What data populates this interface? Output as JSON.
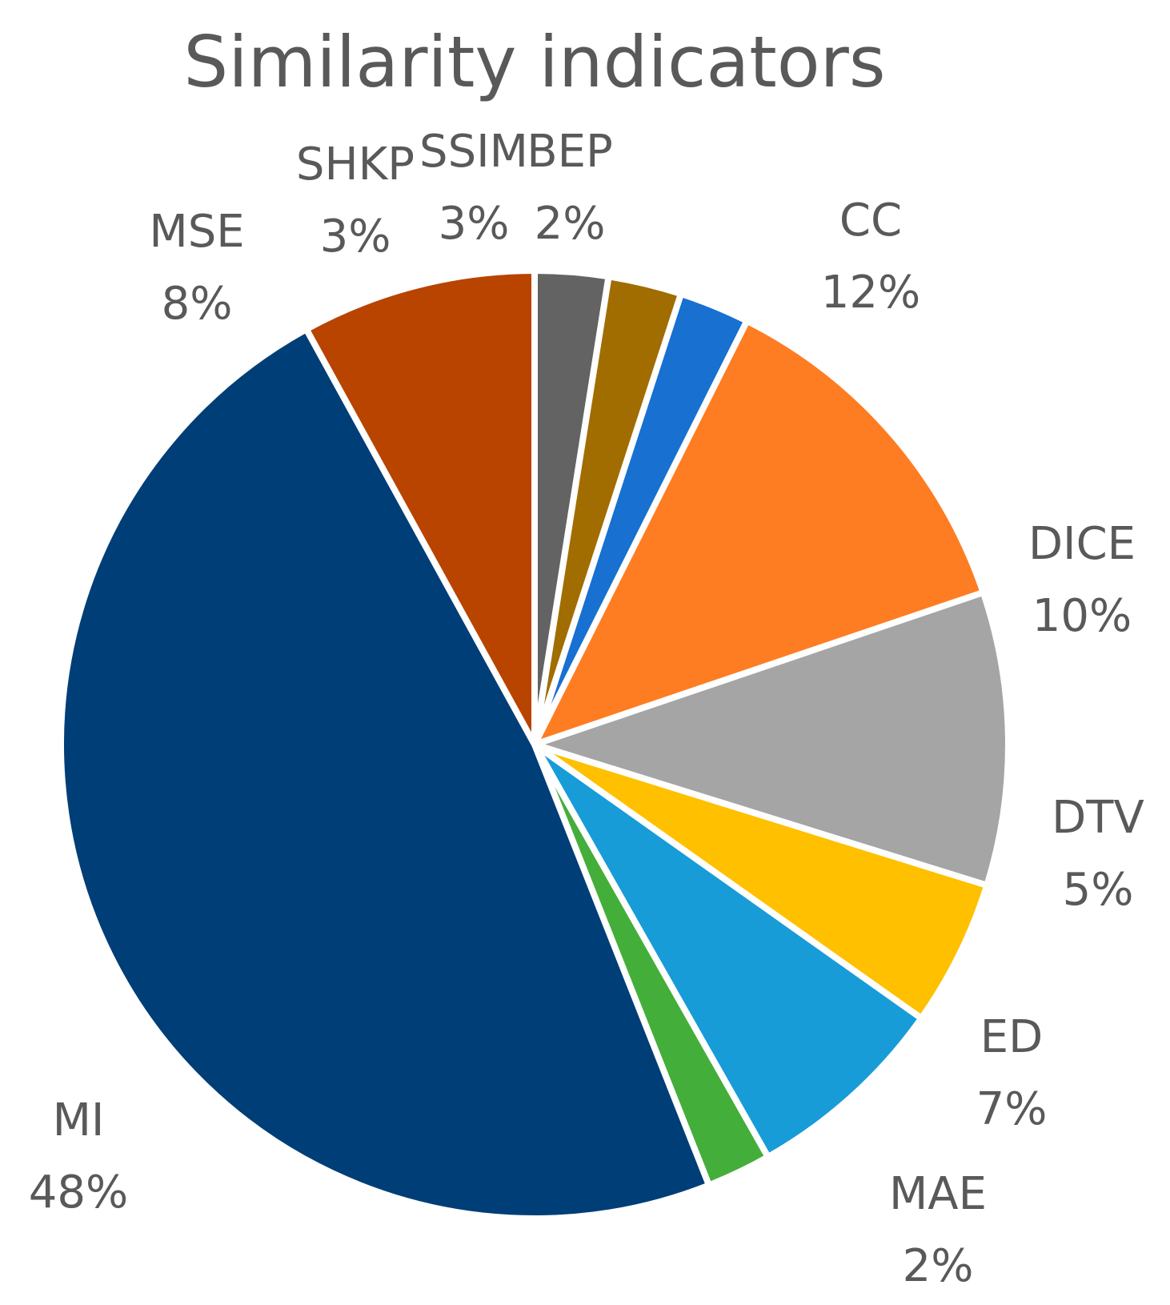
{
  "chart_data": {
    "type": "pie",
    "title": "Similarity indicators",
    "start_angle_deg": 18,
    "direction": "clockwise",
    "slices": [
      {
        "name": "BEP",
        "label": "2%",
        "value": 2.4,
        "color": "#1870D0"
      },
      {
        "name": "CC",
        "label": "12%",
        "value": 12.4,
        "color": "#FE7D22"
      },
      {
        "name": "DICE",
        "label": "10%",
        "value": 10.0,
        "color": "#A5A5A5"
      },
      {
        "name": "DTV",
        "label": "5%",
        "value": 5.0,
        "color": "#FFC000"
      },
      {
        "name": "ED",
        "label": "7%",
        "value": 7.0,
        "color": "#179CD8"
      },
      {
        "name": "MAE",
        "label": "2%",
        "value": 2.2,
        "color": "#44AE3A"
      },
      {
        "name": "MI",
        "label": "48%",
        "value": 48.0,
        "color": "#003E77"
      },
      {
        "name": "MSE",
        "label": "8%",
        "value": 8.0,
        "color": "#B84400"
      },
      {
        "name": "SHKP",
        "label": "3%",
        "value": 2.5,
        "color": "#636363"
      },
      {
        "name": "SSIM",
        "label": "3%",
        "value": 2.5,
        "color": "#A16D00"
      }
    ]
  }
}
